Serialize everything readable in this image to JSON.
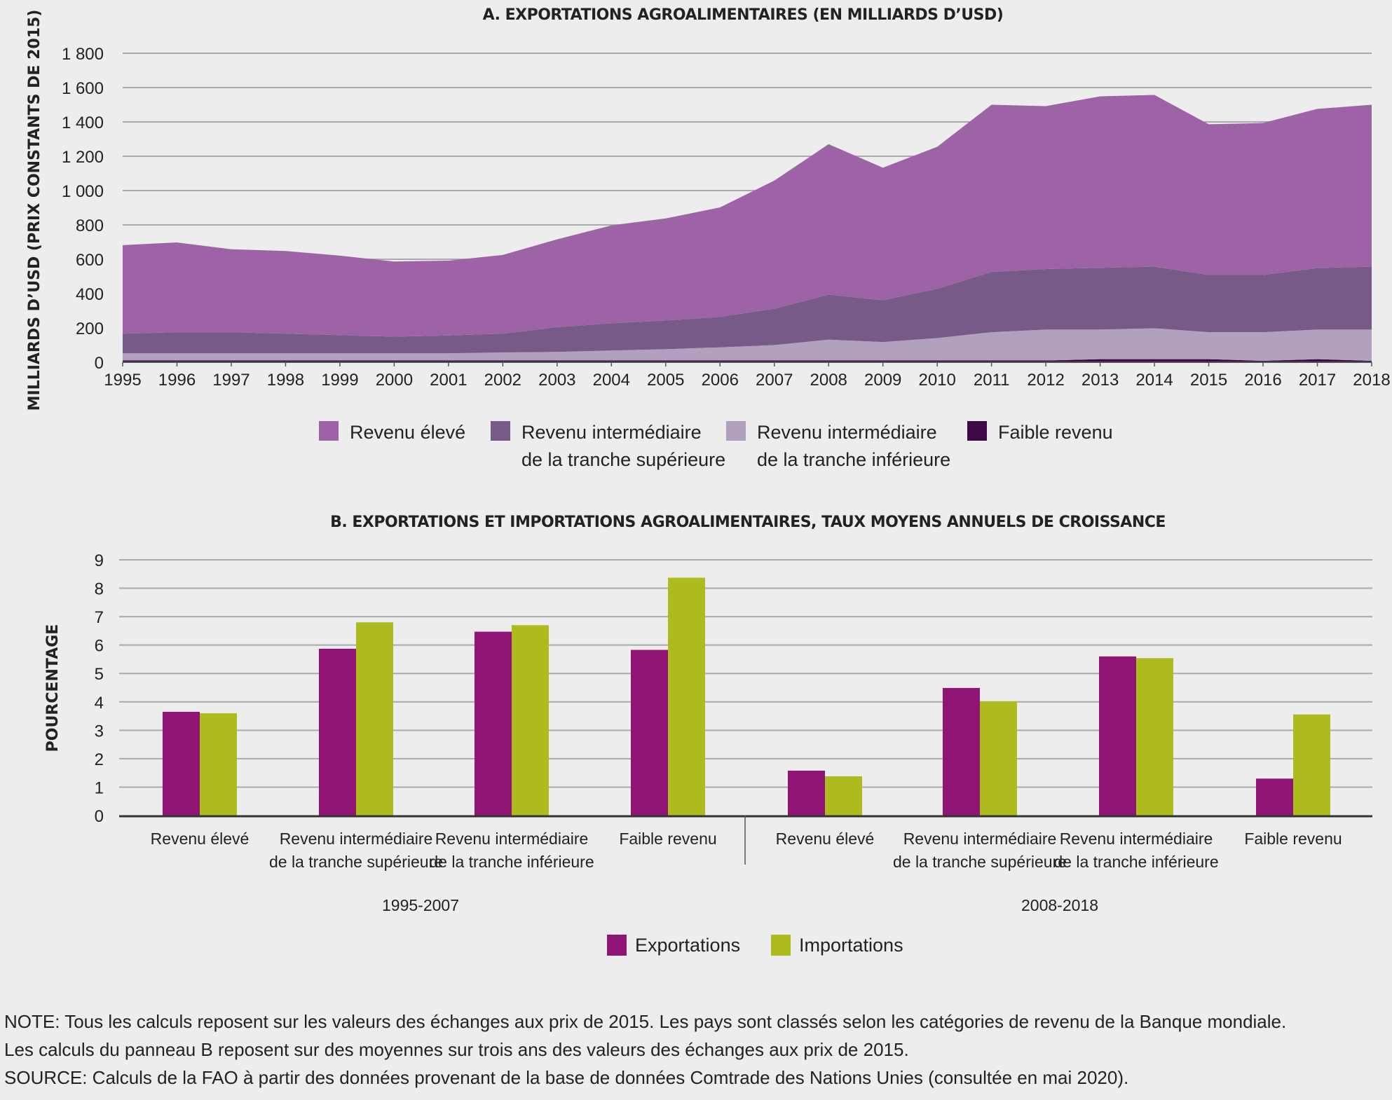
{
  "chart_data": [
    {
      "type": "area",
      "stacked": true,
      "title": "A. EXPORTATIONS AGROALIMENTAIRES (EN MILLIARDS D’USD)",
      "xlabel": "",
      "ylabel": "MILLIARDS D’USD (PRIX CONSTANTS DE 2015)",
      "ylim": [
        0,
        1800
      ],
      "yticks": [
        0,
        200,
        400,
        600,
        800,
        1000,
        1200,
        1400,
        1600,
        1800
      ],
      "ytick_labels": [
        "0",
        "200",
        "400",
        "600",
        "800",
        "1 000",
        "1 200",
        "1 400",
        "1 600",
        "1 800"
      ],
      "grid": true,
      "legend_position": "bottom",
      "x": [
        "1995",
        "1996",
        "1997",
        "1998",
        "1999",
        "2000",
        "2001",
        "2002",
        "2003",
        "2004",
        "2005",
        "2006",
        "2007",
        "2008",
        "2009",
        "2010",
        "2011",
        "2012",
        "2013",
        "2014",
        "2015",
        "2016",
        "2017",
        "2018"
      ],
      "series": [
        {
          "name": "Faible revenu",
          "color": "#3f0a47",
          "values": [
            10,
            10,
            10,
            10,
            10,
            10,
            10,
            10,
            10,
            10,
            10,
            10,
            10,
            10,
            10,
            10,
            10,
            10,
            18,
            18,
            18,
            8,
            18,
            8
          ]
        },
        {
          "name": "Revenu intermédiaire de la tranche inférieure",
          "color": "#b2a1be",
          "values": [
            42,
            42,
            42,
            42,
            42,
            42,
            42,
            47,
            50,
            58,
            66,
            77,
            90,
            122,
            108,
            131,
            165,
            180,
            172,
            180,
            157,
            167,
            172,
            182
          ]
        },
        {
          "name": "Revenu intermédiaire de la tranche supérieure",
          "color": "#775a87",
          "values": [
            114,
            123,
            123,
            114,
            106,
            97,
            104,
            109,
            144,
            159,
            167,
            177,
            212,
            262,
            243,
            287,
            351,
            353,
            360,
            359,
            333,
            333,
            359,
            367
          ]
        },
        {
          "name": "Revenu élevé",
          "color": "#9e63a7",
          "values": [
            516,
            523,
            483,
            482,
            463,
            438,
            436,
            459,
            512,
            570,
            595,
            638,
            746,
            876,
            772,
            827,
            974,
            949,
            999,
            1000,
            878,
            886,
            927,
            943
          ]
        }
      ],
      "legend": [
        {
          "label1": "Revenu élevé",
          "label2": "",
          "color": "#9e63a7"
        },
        {
          "label1": "Revenu intermédiaire",
          "label2": "de la tranche supérieure",
          "color": "#775a87"
        },
        {
          "label1": "Revenu intermédiaire",
          "label2": "de la tranche inférieure",
          "color": "#b2a1be"
        },
        {
          "label1": "Faible revenu",
          "label2": "",
          "color": "#3f0a47"
        }
      ]
    },
    {
      "type": "bar",
      "title": "B. EXPORTATIONS ET IMPORTATIONS AGROALIMENTAIRES, TAUX MOYENS ANNUELS DE CROISSANCE",
      "xlabel": "",
      "ylabel": "POURCENTAGE",
      "ylim": [
        0,
        9
      ],
      "yticks": [
        0,
        1,
        2,
        3,
        4,
        5,
        6,
        7,
        8,
        9
      ],
      "grid": true,
      "legend_position": "bottom",
      "groups": [
        {
          "period": "1995-2007",
          "categories": [
            {
              "line1": "Revenu élevé",
              "line2": ""
            },
            {
              "line1": "Revenu intermédiaire",
              "line2": "de la tranche supérieure"
            },
            {
              "line1": "Revenu intermédiaire",
              "line2": "de la tranche inférieure"
            },
            {
              "line1": "Faible revenu",
              "line2": ""
            }
          ]
        },
        {
          "period": "2008-2018",
          "categories": [
            {
              "line1": "Revenu élevé",
              "line2": ""
            },
            {
              "line1": "Revenu intermédiaire",
              "line2": "de la tranche supérieure"
            },
            {
              "line1": "Revenu intermédiaire",
              "line2": "de la tranche inférieure"
            },
            {
              "line1": "Faible revenu",
              "line2": ""
            }
          ]
        }
      ],
      "series": [
        {
          "name": "Exportations",
          "color": "#901474",
          "values": [
            3.65,
            5.87,
            6.47,
            5.83,
            1.58,
            4.49,
            5.6,
            1.3
          ]
        },
        {
          "name": "Importations",
          "color": "#aebb1e",
          "values": [
            3.6,
            6.8,
            6.7,
            8.37,
            1.38,
            4.02,
            5.54,
            3.56
          ]
        }
      ]
    }
  ],
  "notes": [
    "NOTE: Tous les calculs reposent sur les valeurs des échanges aux prix de 2015. Les pays sont classés selon les catégories de revenu de la Banque mondiale.",
    "Les calculs du panneau B reposent sur des moyennes sur trois ans des valeurs des échanges aux prix de 2015.",
    "SOURCE: Calculs de la FAO à partir des données provenant de la base de données Comtrade des Nations Unies (consultée en mai 2020)."
  ]
}
